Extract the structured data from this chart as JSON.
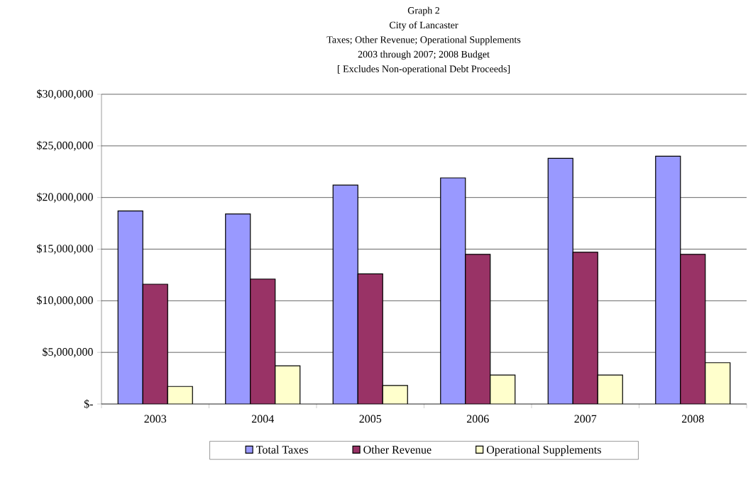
{
  "chart_data": {
    "type": "bar",
    "title": "Graph 2",
    "subtitle": "City of Lancaster",
    "annotations": [
      "Taxes; Other Revenue; Operational Supplements",
      "2003 through 2007; 2008 Budget",
      "[ Excludes Non-operational Debt Proceeds]"
    ],
    "categories": [
      "2003",
      "2004",
      "2005",
      "2006",
      "2007",
      "2008"
    ],
    "series": [
      {
        "name": "Total Taxes",
        "color": "#9999ff",
        "values": [
          18700000,
          18400000,
          21200000,
          21900000,
          23800000,
          24000000
        ]
      },
      {
        "name": "Other Revenue",
        "color": "#993366",
        "values": [
          11600000,
          12100000,
          12600000,
          14500000,
          14700000,
          14500000
        ]
      },
      {
        "name": "Operational Supplements",
        "color": "#ffffcc",
        "values": [
          1700000,
          3700000,
          1800000,
          2800000,
          2800000,
          4000000
        ]
      }
    ],
    "ylim": [
      0,
      30000000
    ],
    "yticks": [
      {
        "value": 0,
        "label": "$-"
      },
      {
        "value": 5000000,
        "label": "$5,000,000"
      },
      {
        "value": 10000000,
        "label": "$10,000,000"
      },
      {
        "value": 15000000,
        "label": "$15,000,000"
      },
      {
        "value": 20000000,
        "label": "$20,000,000"
      },
      {
        "value": 25000000,
        "label": "$25,000,000"
      },
      {
        "value": 30000000,
        "label": "$30,000,000"
      }
    ],
    "grid": "y",
    "legend": "bottom"
  }
}
